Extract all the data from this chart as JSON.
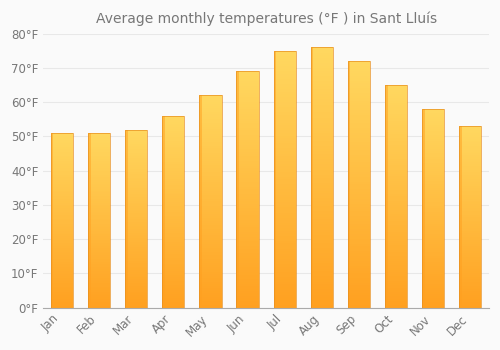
{
  "title": "Average monthly temperatures (°F ) in Sant Lluís",
  "months": [
    "Jan",
    "Feb",
    "Mar",
    "Apr",
    "May",
    "Jun",
    "Jul",
    "Aug",
    "Sep",
    "Oct",
    "Nov",
    "Dec"
  ],
  "values": [
    51,
    51,
    52,
    56,
    62,
    69,
    75,
    76,
    72,
    65,
    58,
    53
  ],
  "bar_color_top": "#FFD060",
  "bar_color_bottom": "#FFA020",
  "bar_color_left": "#FFA820",
  "background_color": "#FAFAFA",
  "grid_color": "#E8E8E8",
  "text_color": "#777777",
  "ylim": [
    0,
    80
  ],
  "yticks": [
    0,
    10,
    20,
    30,
    40,
    50,
    60,
    70,
    80
  ],
  "title_fontsize": 10,
  "tick_fontsize": 8.5,
  "bar_width": 0.6
}
